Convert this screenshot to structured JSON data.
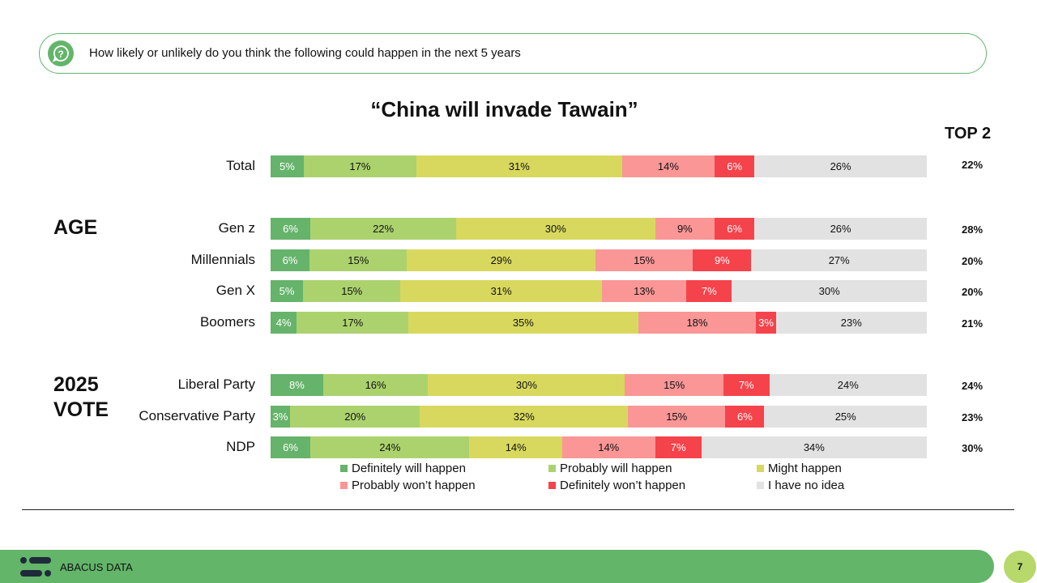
{
  "question": "How likely or unlikely do you think the following could happen in the next 5 years",
  "top2_header": "TOP 2",
  "groups": {
    "age": "AGE",
    "vote_line1": "2025",
    "vote_line2": "VOTE"
  },
  "footer": {
    "brand": "ABACUS DATA",
    "page": "7"
  },
  "colors": {
    "definitely_will": "#66b36b",
    "probably_will": "#acd26e",
    "might": "#d8d85f",
    "probably_wont": "#fa9696",
    "definitely_wont": "#f5434b",
    "no_idea": "#e2e2e2"
  },
  "chart_data": {
    "type": "bar",
    "orientation": "horizontal",
    "stacked": true,
    "title": "“China will invade Tawain”",
    "categories": [
      "Total",
      "Gen z",
      "Millennials",
      "Gen X",
      "Boomers",
      "Liberal Party",
      "Conservative Party",
      "NDP"
    ],
    "series": [
      {
        "name": "Definitely will happen",
        "values": [
          5,
          6,
          6,
          5,
          4,
          8,
          3,
          6
        ]
      },
      {
        "name": "Probably will happen",
        "values": [
          17,
          22,
          15,
          15,
          17,
          16,
          20,
          24
        ]
      },
      {
        "name": "Might happen",
        "values": [
          31,
          30,
          29,
          31,
          35,
          30,
          32,
          14
        ]
      },
      {
        "name": "Probably won’t happen",
        "values": [
          14,
          9,
          15,
          13,
          18,
          15,
          15,
          14
        ]
      },
      {
        "name": "Definitely won’t happen",
        "values": [
          6,
          6,
          9,
          7,
          3,
          7,
          6,
          7
        ]
      },
      {
        "name": "I have no idea",
        "values": [
          26,
          26,
          27,
          30,
          23,
          24,
          25,
          34
        ]
      }
    ],
    "top2": [
      "22%",
      "28%",
      "20%",
      "20%",
      "21%",
      "24%",
      "23%",
      "30%"
    ],
    "legend": "bottom"
  }
}
